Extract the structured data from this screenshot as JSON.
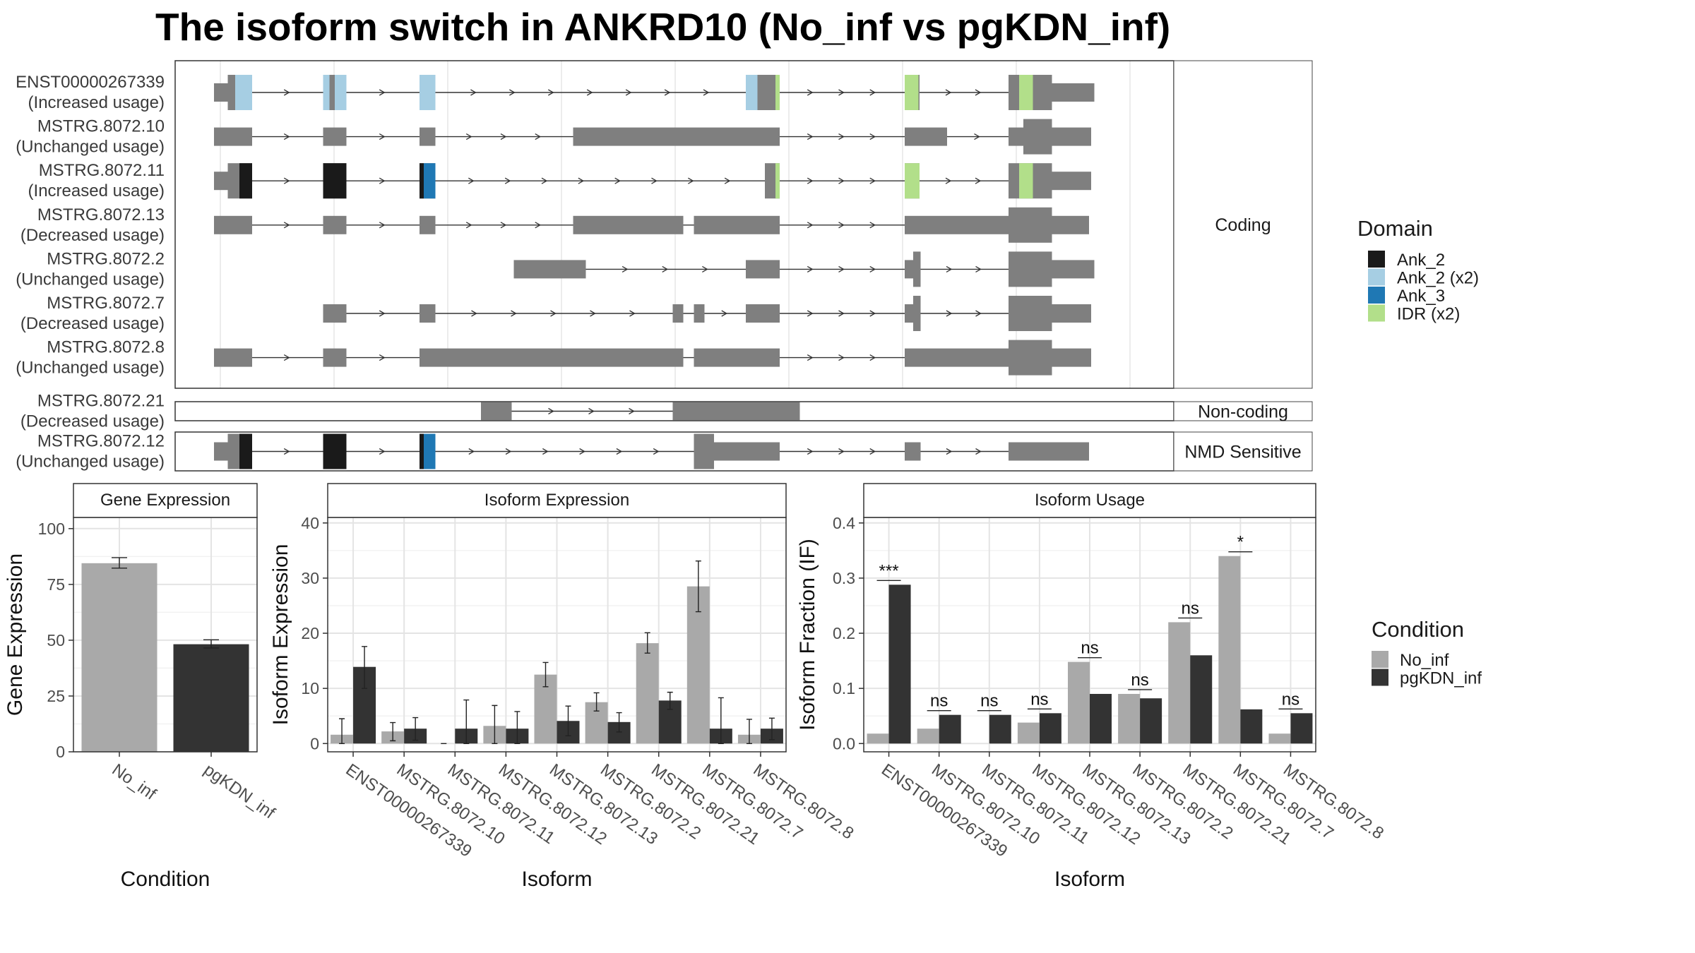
{
  "title": "The isoform switch in ANKRD10 (No_inf vs pgKDN_inf)",
  "colors": {
    "exon": "#7f7f7f",
    "No_inf": "#a9a9a9",
    "pgKDN_inf": "#333333",
    "Ank_2": "#1a1a1a",
    "Ank_2 (x2)": "#a6cee3",
    "Ank_3": "#1f78b4",
    "IDR (x2)": "#b2df8a"
  },
  "structure": {
    "groups": [
      {
        "label": "Coding",
        "rows": 7
      },
      {
        "label": "Non-coding",
        "rows": 1
      },
      {
        "label": "NMD Sensitive",
        "rows": 1
      }
    ],
    "isoforms": [
      {
        "name": "ENST00000267339",
        "status": "(Increased usage)",
        "group": 0,
        "exons": [
          [
            202,
            215,
            "u"
          ],
          [
            215,
            238,
            "c"
          ],
          [
            305,
            327,
            "c"
          ],
          [
            396,
            411,
            "c"
          ],
          [
            704,
            736,
            "c"
          ],
          [
            854,
            868,
            "c"
          ],
          [
            952,
            993,
            "c"
          ],
          [
            993,
            1033,
            "u"
          ]
        ],
        "domains": [
          [
            222,
            238,
            "Ank_2 (x2)"
          ],
          [
            305,
            311,
            "Ank_2 (x2)"
          ],
          [
            316,
            327,
            "Ank_2 (x2)"
          ],
          [
            396,
            411,
            "Ank_2 (x2)"
          ],
          [
            704,
            715,
            "Ank_2 (x2)"
          ],
          [
            732,
            736,
            "IDR (x2)"
          ],
          [
            854,
            867,
            "IDR (x2)"
          ],
          [
            962,
            975,
            "IDR (x2)"
          ]
        ]
      },
      {
        "name": "MSTRG.8072.10",
        "status": "(Unchanged usage)",
        "group": 0,
        "exons": [
          [
            202,
            238,
            "u"
          ],
          [
            305,
            327,
            "u"
          ],
          [
            396,
            411,
            "u"
          ],
          [
            541,
            736,
            "u"
          ],
          [
            854,
            894,
            "u"
          ],
          [
            952,
            966,
            "u"
          ],
          [
            966,
            993,
            "c"
          ],
          [
            993,
            1030,
            "u"
          ]
        ],
        "domains": []
      },
      {
        "name": "MSTRG.8072.11",
        "status": "(Increased usage)",
        "group": 0,
        "exons": [
          [
            202,
            215,
            "u"
          ],
          [
            215,
            238,
            "c"
          ],
          [
            305,
            327,
            "c"
          ],
          [
            396,
            411,
            "c"
          ],
          [
            722,
            736,
            "c"
          ],
          [
            854,
            868,
            "c"
          ],
          [
            952,
            993,
            "c"
          ],
          [
            993,
            1030,
            "u"
          ]
        ],
        "domains": [
          [
            226,
            238,
            "Ank_2"
          ],
          [
            305,
            327,
            "Ank_2"
          ],
          [
            396,
            400,
            "Ank_2"
          ],
          [
            400,
            411,
            "Ank_3"
          ],
          [
            732,
            736,
            "IDR (x2)"
          ],
          [
            854,
            868,
            "IDR (x2)"
          ],
          [
            962,
            975,
            "IDR (x2)"
          ]
        ]
      },
      {
        "name": "MSTRG.8072.13",
        "status": "(Decreased usage)",
        "group": 0,
        "exons": [
          [
            202,
            238,
            "u"
          ],
          [
            305,
            327,
            "u"
          ],
          [
            396,
            411,
            "u"
          ],
          [
            541,
            645,
            "u"
          ],
          [
            655,
            736,
            "u"
          ],
          [
            854,
            952,
            "u"
          ],
          [
            952,
            993,
            "c"
          ],
          [
            993,
            1028,
            "u"
          ]
        ],
        "domains": []
      },
      {
        "name": "MSTRG.8072.2",
        "status": "(Unchanged usage)",
        "group": 0,
        "exons": [
          [
            485,
            553,
            "u"
          ],
          [
            704,
            736,
            "u"
          ],
          [
            854,
            862,
            "u"
          ],
          [
            862,
            869,
            "c"
          ],
          [
            952,
            993,
            "c"
          ],
          [
            993,
            1033,
            "u"
          ]
        ],
        "domains": []
      },
      {
        "name": "MSTRG.8072.7",
        "status": "(Decreased usage)",
        "group": 0,
        "exons": [
          [
            305,
            327,
            "u"
          ],
          [
            396,
            411,
            "u"
          ],
          [
            635,
            645,
            "u"
          ],
          [
            655,
            665,
            "u"
          ],
          [
            704,
            736,
            "u"
          ],
          [
            854,
            862,
            "u"
          ],
          [
            862,
            869,
            "c"
          ],
          [
            952,
            993,
            "c"
          ],
          [
            993,
            1030,
            "u"
          ]
        ],
        "domains": []
      },
      {
        "name": "MSTRG.8072.8",
        "status": "(Unchanged usage)",
        "group": 0,
        "exons": [
          [
            202,
            238,
            "u"
          ],
          [
            305,
            327,
            "u"
          ],
          [
            396,
            645,
            "u"
          ],
          [
            655,
            736,
            "u"
          ],
          [
            854,
            952,
            "u"
          ],
          [
            952,
            993,
            "c"
          ],
          [
            993,
            1030,
            "u"
          ]
        ],
        "domains": []
      },
      {
        "name": "MSTRG.8072.21",
        "status": "(Decreased usage)",
        "group": 1,
        "exons": [
          [
            454,
            483,
            "u"
          ],
          [
            635,
            755,
            "u"
          ]
        ],
        "domains": []
      },
      {
        "name": "MSTRG.8072.12",
        "status": "(Unchanged usage)",
        "group": 2,
        "exons": [
          [
            202,
            215,
            "u"
          ],
          [
            215,
            238,
            "c"
          ],
          [
            305,
            327,
            "c"
          ],
          [
            396,
            411,
            "c"
          ],
          [
            655,
            674,
            "c"
          ],
          [
            674,
            736,
            "u"
          ],
          [
            854,
            869,
            "u"
          ],
          [
            952,
            1028,
            "u"
          ]
        ],
        "domains": [
          [
            226,
            238,
            "Ank_2"
          ],
          [
            305,
            327,
            "Ank_2"
          ],
          [
            396,
            400,
            "Ank_2"
          ],
          [
            400,
            411,
            "Ank_3"
          ]
        ]
      }
    ]
  },
  "legends": {
    "domain_title": "Domain",
    "domains": [
      "Ank_2",
      "Ank_2 (x2)",
      "Ank_3",
      "IDR (x2)"
    ],
    "condition_title": "Condition",
    "conditions": [
      "No_inf",
      "pgKDN_inf"
    ]
  },
  "chart_data": [
    {
      "type": "bar",
      "panel": "Gene Expression",
      "xlabel": "Condition",
      "ylabel": "Gene Expression",
      "categories": [
        "No_inf",
        "pgKDN_inf"
      ],
      "values": [
        84.5,
        48.2
      ],
      "errors": [
        [
          82.3,
          87.0
        ],
        [
          46.5,
          50.2
        ]
      ],
      "ylim": [
        0,
        105
      ],
      "yticks": [
        0,
        25,
        50,
        75,
        100
      ]
    },
    {
      "type": "bar",
      "panel": "Isoform Expression",
      "xlabel": "Isoform",
      "ylabel": "Isoform Expression",
      "categories": [
        "ENST00000267339",
        "MSTRG.8072.10",
        "MSTRG.8072.11",
        "MSTRG.8072.12",
        "MSTRG.8072.13",
        "MSTRG.8072.2",
        "MSTRG.8072.21",
        "MSTRG.8072.7",
        "MSTRG.8072.8"
      ],
      "series": [
        {
          "name": "No_inf",
          "values": [
            1.6,
            2.2,
            0,
            3.2,
            12.5,
            7.5,
            18.2,
            28.5,
            1.6
          ],
          "errors": [
            [
              0,
              4.5
            ],
            [
              0.5,
              3.8
            ],
            [
              0,
              0
            ],
            [
              0,
              6.9
            ],
            [
              10.3,
              14.7
            ],
            [
              5.9,
              9.2
            ],
            [
              16.4,
              20.1
            ],
            [
              23.9,
              33.1
            ],
            [
              0,
              4.4
            ]
          ]
        },
        {
          "name": "pgKDN_inf",
          "values": [
            13.9,
            2.7,
            2.7,
            2.7,
            4.1,
            3.9,
            7.8,
            2.7,
            2.7
          ],
          "errors": [
            [
              10.0,
              17.6
            ],
            [
              0.6,
              4.7
            ],
            [
              0,
              7.9
            ],
            [
              0,
              5.8
            ],
            [
              1.4,
              6.8
            ],
            [
              2.1,
              5.6
            ],
            [
              6.2,
              9.3
            ],
            [
              0,
              8.3
            ],
            [
              0.7,
              4.6
            ]
          ]
        }
      ],
      "ylim": [
        -1.5,
        41
      ],
      "yticks": [
        0,
        10,
        20,
        30,
        40
      ]
    },
    {
      "type": "bar",
      "panel": "Isoform Usage",
      "xlabel": "Isoform",
      "ylabel": "Isoform Fraction (IF)",
      "categories": [
        "ENST00000267339",
        "MSTRG.8072.10",
        "MSTRG.8072.11",
        "MSTRG.8072.12",
        "MSTRG.8072.13",
        "MSTRG.8072.2",
        "MSTRG.8072.21",
        "MSTRG.8072.7",
        "MSTRG.8072.8"
      ],
      "series": [
        {
          "name": "No_inf",
          "values": [
            0.018,
            0.027,
            0,
            0.038,
            0.148,
            0.09,
            0.22,
            0.34,
            0.018
          ]
        },
        {
          "name": "pgKDN_inf",
          "values": [
            0.288,
            0.052,
            0.052,
            0.055,
            0.09,
            0.082,
            0.16,
            0.062,
            0.055
          ]
        }
      ],
      "significance": [
        "***",
        "ns",
        "ns",
        "ns",
        "ns",
        "ns",
        "ns",
        "*",
        "ns"
      ],
      "ylim": [
        -0.015,
        0.41
      ],
      "yticks": [
        0.0,
        0.1,
        0.2,
        0.3,
        0.4
      ],
      "ytick_labels": [
        "0.0",
        "0.1",
        "0.2",
        "0.3",
        "0.4"
      ]
    }
  ]
}
